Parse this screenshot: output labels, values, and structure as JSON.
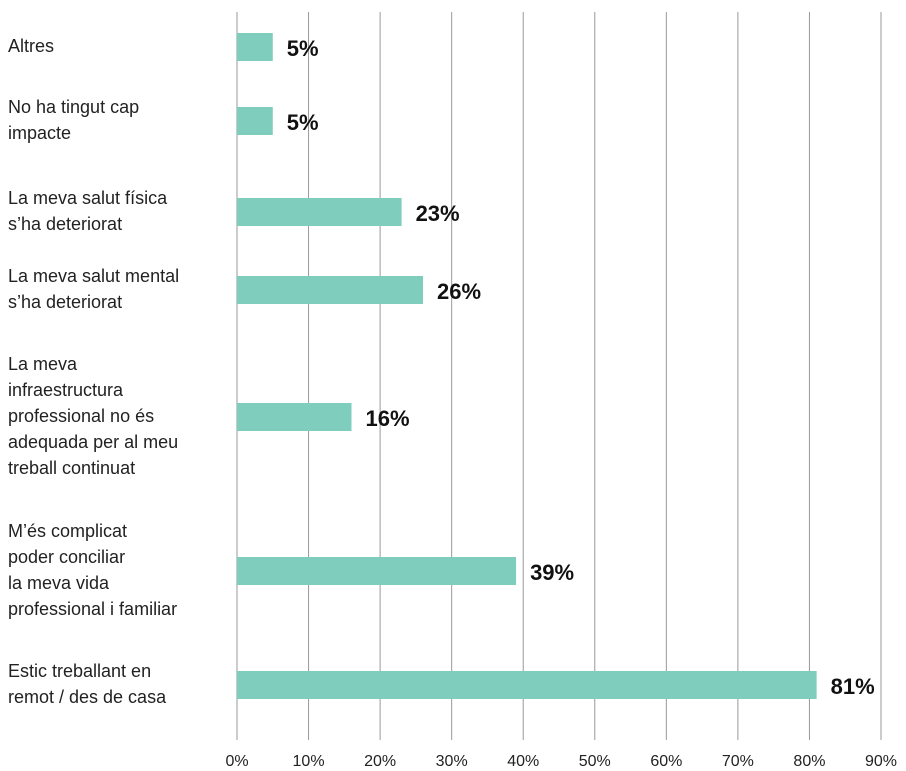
{
  "chart_data": {
    "type": "bar",
    "orientation": "horizontal",
    "categories": [
      "Altres",
      "No ha tingut cap\nimpacte",
      "La meva salut física\ns’ha deteriorat",
      "La meva salut mental\ns’ha deteriorat",
      "La meva\ninfraestructura\nprofessional no és\nadequada per al meu\ntreball continuat",
      "M’és complicat\npoder conciliar\nla meva vida\nprofessional i familiar",
      "Estic treballant en\nremot / des de casa"
    ],
    "values": [
      5,
      5,
      23,
      26,
      16,
      39,
      81
    ],
    "value_labels": [
      "5%",
      "5%",
      "23%",
      "26%",
      "16%",
      "39%",
      "81%"
    ],
    "color": "#7ecdbd",
    "xlim": [
      0,
      90
    ],
    "xticks": [
      {
        "value": 0,
        "label": "0%"
      },
      {
        "value": 10,
        "label": "10%"
      },
      {
        "value": 20,
        "label": "20%"
      },
      {
        "value": 30,
        "label": "30%"
      },
      {
        "value": 40,
        "label": "40%"
      },
      {
        "value": 50,
        "label": "50%"
      },
      {
        "value": 60,
        "label": "60%"
      },
      {
        "value": 70,
        "label": "70%"
      },
      {
        "value": 80,
        "label": "80%"
      },
      {
        "value": 90,
        "label": "90%"
      }
    ],
    "grid": true
  }
}
